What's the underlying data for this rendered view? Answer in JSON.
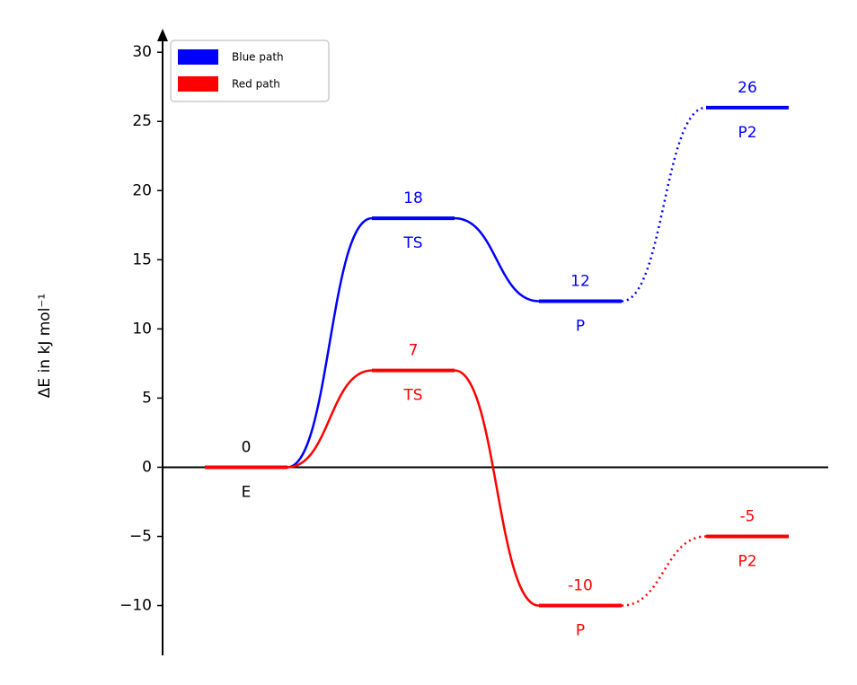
{
  "chart_data": {
    "type": "energy",
    "ylabel": "ΔE in kJ mol⁻¹",
    "ylim": [
      -13.6,
      31.7
    ],
    "yticks": [
      {
        "value": -10,
        "label": "−10"
      },
      {
        "value": -5,
        "label": "−5"
      },
      0,
      5,
      10,
      15,
      20,
      25,
      30
    ],
    "start": {
      "name": "E",
      "value": 0,
      "color": "#000000"
    },
    "connectors": [
      "solid",
      "solid",
      "dotted"
    ],
    "legend": "upper left",
    "series": [
      {
        "name": "Blue path",
        "color": "#0000ff",
        "states": [
          "TS",
          "P",
          "P2"
        ],
        "values": [
          18,
          12,
          26
        ]
      },
      {
        "name": "Red path",
        "color": "#ff0000",
        "states": [
          "TS",
          "P",
          "P2"
        ],
        "values": [
          7,
          -10,
          -5
        ]
      }
    ]
  }
}
